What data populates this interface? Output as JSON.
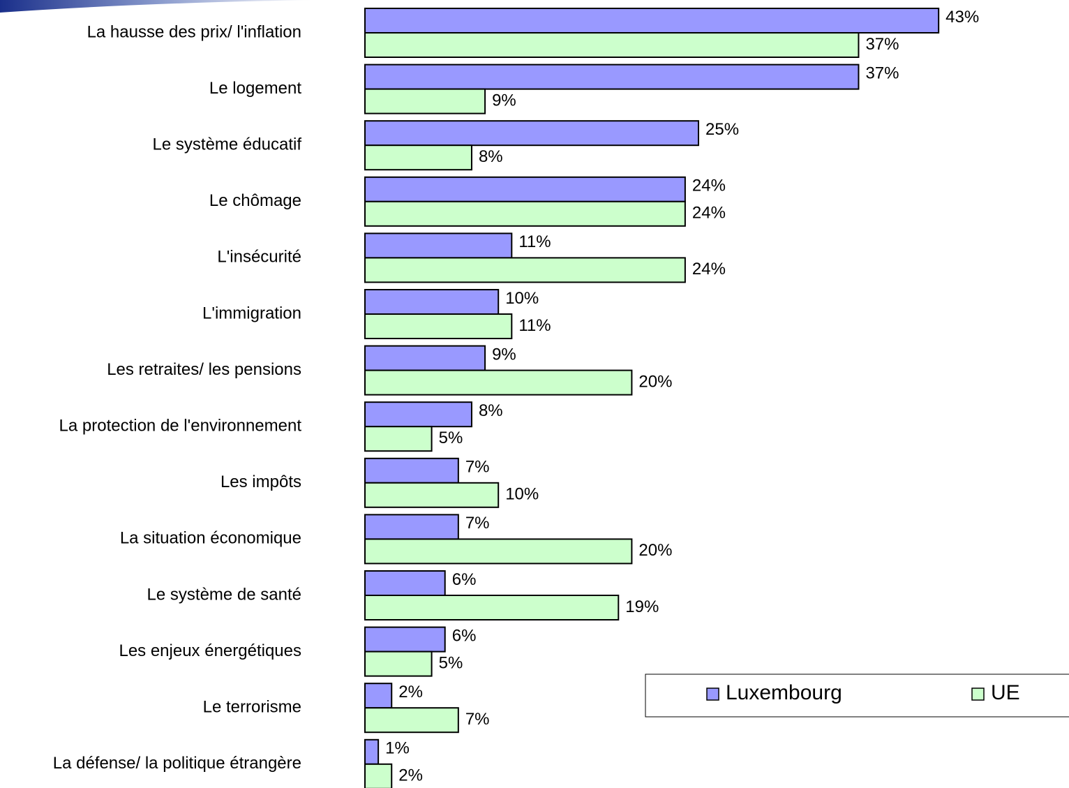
{
  "chart_data": {
    "type": "hbar",
    "categories": [
      "La hausse des prix/ l'inflation",
      "Le logement",
      "Le système éducatif",
      "Le chômage",
      "L'insécurité",
      "L'immigration",
      "Les retraites/ les pensions",
      "La protection de l'environnement",
      "Les impôts",
      "La situation économique",
      "Le système de santé",
      "Les enjeux énergétiques",
      "Le terrorisme",
      "La défense/ la politique étrangère"
    ],
    "series": [
      {
        "name": "Luxembourg",
        "color": "#9999ff",
        "values": [
          43,
          37,
          25,
          24,
          11,
          10,
          9,
          8,
          7,
          7,
          6,
          6,
          2,
          1
        ],
        "value_labels": [
          "43%",
          "37%",
          "25%",
          "24%",
          "11%",
          "10%",
          "9%",
          "8%",
          "7%",
          "7%",
          "6%",
          "6%",
          "2%",
          "1%"
        ]
      },
      {
        "name": "UE",
        "color": "#ccffcc",
        "values": [
          37,
          9,
          8,
          24,
          24,
          11,
          20,
          5,
          10,
          20,
          19,
          5,
          7,
          2
        ],
        "value_labels": [
          "37%",
          "9%",
          "8%",
          "24%",
          "24%",
          "11%",
          "20%",
          "5%",
          "10%",
          "20%",
          "19%",
          "5%",
          "7%",
          "2%"
        ]
      }
    ],
    "legend": "bottom-right"
  }
}
